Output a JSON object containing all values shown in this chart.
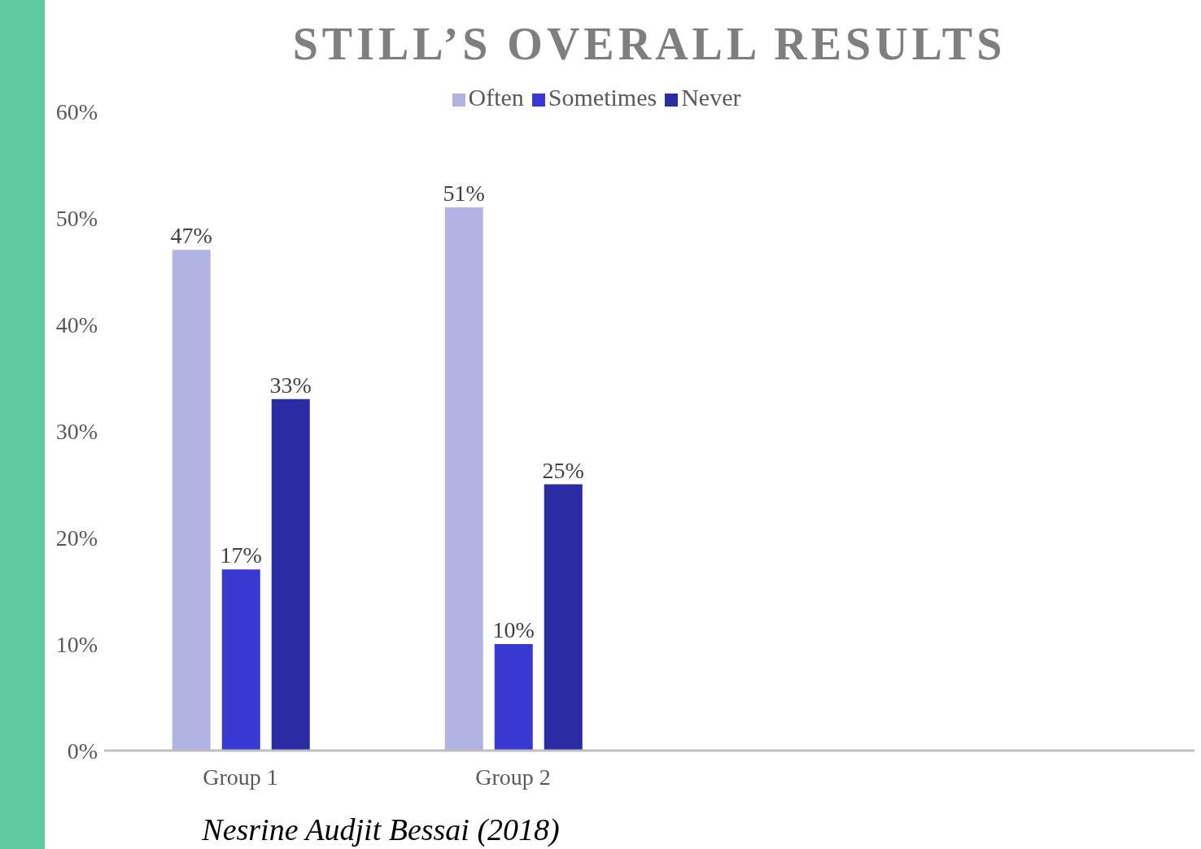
{
  "chart_data": {
    "type": "bar",
    "title": "STILL’S OVERALL RESULTS",
    "categories": [
      "Group 1",
      "Group 2",
      null,
      null
    ],
    "series": [
      {
        "name": "Often",
        "color": "#b3b3e3",
        "values": [
          47,
          51,
          null,
          null
        ],
        "value_labels": [
          "47%",
          "51%",
          null,
          null
        ]
      },
      {
        "name": "Sometimes",
        "color": "#3838d2",
        "values": [
          17,
          10,
          null,
          null
        ],
        "value_labels": [
          "17%",
          "10%",
          null,
          null
        ]
      },
      {
        "name": "Never",
        "color": "#2b2ba3",
        "values": [
          33,
          25,
          null,
          null
        ],
        "value_labels": [
          "33%",
          "25%",
          null,
          null
        ]
      }
    ],
    "ylim": [
      0,
      60
    ],
    "yticks": [
      {
        "value": 0,
        "label": "0%"
      },
      {
        "value": 10,
        "label": "10%"
      },
      {
        "value": 20,
        "label": "20%"
      },
      {
        "value": 30,
        "label": "30%"
      },
      {
        "value": 40,
        "label": "40%"
      },
      {
        "value": 50,
        "label": "50%"
      },
      {
        "value": 60,
        "label": "60%"
      }
    ],
    "grid": false,
    "legend": "top",
    "annotations": [
      "Nesrine Audjit Bessai (2018)"
    ]
  }
}
